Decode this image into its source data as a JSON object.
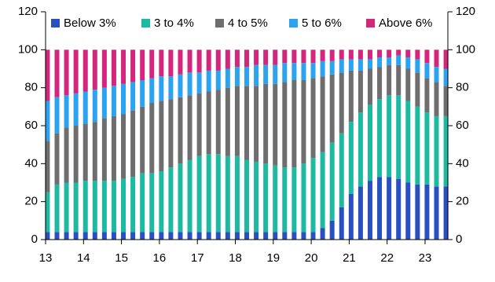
{
  "chart_data": {
    "type": "stacked_bar",
    "x": [
      13.05,
      13.3,
      13.55,
      13.8,
      14.05,
      14.3,
      14.55,
      14.8,
      15.05,
      15.3,
      15.55,
      15.8,
      16.05,
      16.3,
      16.55,
      16.8,
      17.05,
      17.3,
      17.55,
      17.8,
      18.05,
      18.3,
      18.55,
      18.8,
      19.05,
      19.3,
      19.55,
      19.8,
      20.05,
      20.3,
      20.55,
      20.8,
      21.05,
      21.3,
      21.55,
      21.8,
      22.05,
      22.3,
      22.55,
      22.8,
      23.05,
      23.3,
      23.55
    ],
    "xlim": [
      13,
      23.6
    ],
    "xticks": [
      13,
      14,
      15,
      16,
      17,
      18,
      19,
      20,
      21,
      22,
      23
    ],
    "ylim": [
      0,
      120
    ],
    "yticks": [
      0,
      20,
      40,
      60,
      80,
      100,
      120
    ],
    "y2lim": [
      0,
      120
    ],
    "y2ticks": [
      0,
      20,
      40,
      60,
      80,
      100,
      120
    ],
    "legend": "top",
    "series": [
      {
        "name": "Below 3%",
        "color": "#2a50c0",
        "values": [
          4,
          4,
          4,
          4,
          4,
          4,
          4,
          4,
          4,
          4,
          4,
          4,
          4,
          4,
          4,
          4,
          4,
          4,
          4,
          4,
          4,
          4,
          4,
          4,
          4,
          4,
          4,
          4,
          4,
          6,
          10,
          17,
          24,
          28,
          31,
          33,
          33,
          32,
          30,
          29,
          29,
          28,
          28
        ]
      },
      {
        "name": "3 to 4%",
        "color": "#1db9a0",
        "values": [
          21,
          25,
          26,
          26,
          27,
          27,
          27,
          27,
          28,
          29,
          31,
          31,
          32,
          34,
          36,
          38,
          40,
          41,
          41,
          40,
          40,
          38,
          37,
          36,
          35,
          34,
          34,
          36,
          39,
          40,
          41,
          39,
          38,
          39,
          40,
          41,
          43,
          44,
          43,
          41,
          38,
          37,
          37
        ]
      },
      {
        "name": "4 to 5%",
        "color": "#6e6e6e",
        "values": [
          27,
          27,
          29,
          30,
          30,
          31,
          33,
          34,
          34,
          35,
          35,
          37,
          37,
          36,
          35,
          34,
          33,
          33,
          34,
          36,
          37,
          39,
          40,
          42,
          43,
          45,
          46,
          44,
          42,
          40,
          36,
          32,
          27,
          22,
          19,
          17,
          16,
          16,
          17,
          18,
          18,
          18,
          16
        ]
      },
      {
        "name": "5 to 6%",
        "color": "#2ba3f0",
        "values": [
          21,
          19,
          17,
          17,
          17,
          17,
          16,
          16,
          16,
          15,
          14,
          13,
          13,
          12,
          12,
          12,
          11,
          11,
          10,
          10,
          10,
          10,
          11,
          10,
          10,
          10,
          9,
          9,
          8,
          8,
          7,
          7,
          6,
          6,
          5,
          5,
          4,
          5,
          6,
          7,
          8,
          8,
          9
        ]
      },
      {
        "name": "Above 6%",
        "color": "#d4267c",
        "values": [
          27,
          25,
          24,
          23,
          22,
          21,
          20,
          19,
          18,
          17,
          16,
          15,
          14,
          14,
          13,
          12,
          12,
          11,
          11,
          10,
          9,
          9,
          8,
          8,
          8,
          7,
          7,
          7,
          7,
          6,
          6,
          5,
          5,
          5,
          5,
          4,
          4,
          3,
          4,
          5,
          7,
          9,
          10
        ]
      }
    ]
  }
}
